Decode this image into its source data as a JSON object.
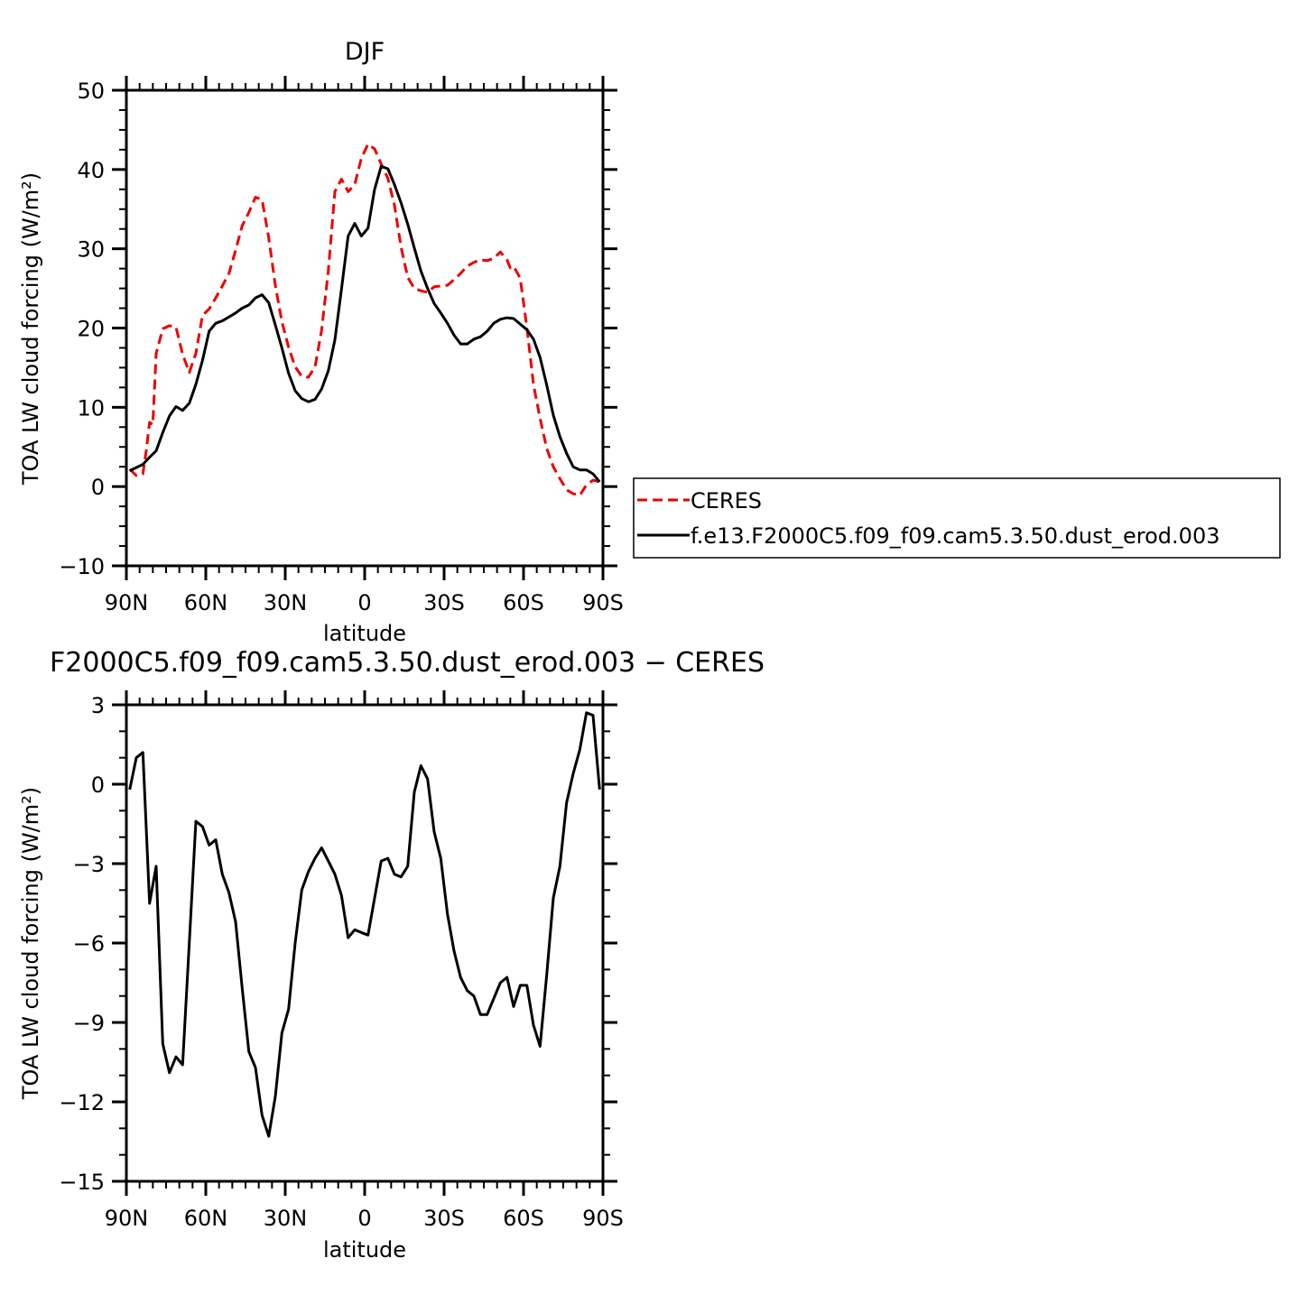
{
  "chart_data": [
    {
      "type": "line",
      "title": "DJF",
      "xlabel": "latitude",
      "ylabel": "TOA LW cloud forcing (W/m²)",
      "ylim": [
        -10,
        50
      ],
      "xlim": [
        90,
        -90
      ],
      "yticks": [
        "50",
        "40",
        "30",
        "20",
        "10",
        "0",
        "−10"
      ],
      "ytick_values": [
        50,
        40,
        30,
        20,
        10,
        0,
        -10
      ],
      "xticks": [
        "90N",
        "60N",
        "30N",
        "0",
        "30S",
        "60S",
        "90S"
      ],
      "xtick_values": [
        90,
        60,
        30,
        0,
        -30,
        -60,
        -90
      ],
      "legend_position": "right",
      "series": [
        {
          "name": "CERES",
          "color": "#ee0000",
          "dash": "dashed",
          "x": [
            88.75,
            86.25,
            83.75,
            82.5,
            81.25,
            80,
            78.75,
            76.25,
            73.75,
            71.25,
            68.75,
            66.25,
            63.75,
            61.25,
            58.75,
            56.25,
            53.75,
            51.25,
            48.75,
            46.25,
            43.75,
            41.25,
            38.75,
            36.25,
            33.75,
            31.25,
            28.75,
            26.25,
            23.75,
            21.25,
            18.75,
            16.25,
            13.75,
            11.25,
            8.75,
            6.25,
            3.75,
            1.25,
            -1.25,
            -3.75,
            -6.25,
            -8.75,
            -11.25,
            -13.75,
            -16.25,
            -18.75,
            -21.25,
            -23.75,
            -26.25,
            -28.75,
            -31.25,
            -33.75,
            -36.25,
            -38.75,
            -41.25,
            -43.75,
            -46.25,
            -48.75,
            -51.25,
            -53.75,
            -55,
            -56.25,
            -58.75,
            -61.25,
            -63.75,
            -66.25,
            -68.75,
            -71.25,
            -73.75,
            -76.25,
            -78.75,
            -81.25,
            -83.75,
            -86.25,
            -88.75
          ],
          "y": [
            2.2,
            1.4,
            1.6,
            4.5,
            8.1,
            7.8,
            16.8,
            19.9,
            20.3,
            20.1,
            16.7,
            14.4,
            16.8,
            21.6,
            22.4,
            23.8,
            25.3,
            26.9,
            29.8,
            32.9,
            34.6,
            36.5,
            36.2,
            31.4,
            25.4,
            20.8,
            17.6,
            15.1,
            13.9,
            13.8,
            15.1,
            19.7,
            27.2,
            37.2,
            38.8,
            37.2,
            38.1,
            41.4,
            43.2,
            42.6,
            40.7,
            38.9,
            35.5,
            30.2,
            26.4,
            25.0,
            24.7,
            24.5,
            25.2,
            25.3,
            25.4,
            26.1,
            26.9,
            27.8,
            28.3,
            28.6,
            28.5,
            28.8,
            29.6,
            28.6,
            27.6,
            27.8,
            26.3,
            20.1,
            12.9,
            8.6,
            4.8,
            2.5,
            1.0,
            -0.4,
            -0.9,
            -1.1,
            0.2,
            0.8,
            0.6
          ]
        },
        {
          "name": "f.e13.F2000C5.f09_f09.cam5.3.50.dust_erod.003",
          "color": "#000000",
          "dash": "solid",
          "x": [
            88.75,
            86.25,
            83.75,
            81.25,
            78.75,
            76.25,
            73.75,
            71.25,
            68.75,
            66.25,
            63.75,
            61.25,
            58.75,
            56.25,
            53.75,
            51.25,
            48.75,
            46.25,
            43.75,
            41.25,
            38.75,
            36.25,
            33.75,
            31.25,
            28.75,
            26.25,
            23.75,
            21.25,
            18.75,
            16.25,
            13.75,
            11.25,
            8.75,
            6.25,
            3.75,
            1.25,
            -1.25,
            -3.75,
            -6.25,
            -8.75,
            -11.25,
            -13.75,
            -16.25,
            -18.75,
            -21.25,
            -23.75,
            -26.25,
            -28.75,
            -31.25,
            -33.75,
            -36.25,
            -38.75,
            -41.25,
            -43.75,
            -46.25,
            -48.75,
            -51.25,
            -53.75,
            -56.25,
            -58.75,
            -61.25,
            -63.75,
            -66.25,
            -68.75,
            -71.25,
            -73.75,
            -76.25,
            -78.75,
            -81.25,
            -83.75,
            -86.25,
            -88.75
          ],
          "y": [
            2.0,
            2.4,
            2.8,
            3.7,
            4.5,
            6.8,
            8.9,
            10.1,
            9.6,
            10.5,
            12.9,
            15.9,
            19.6,
            20.6,
            20.9,
            21.4,
            21.9,
            22.5,
            22.9,
            23.8,
            24.2,
            23.2,
            20.4,
            17.5,
            14.3,
            12.1,
            11.1,
            10.7,
            11.0,
            12.3,
            14.6,
            18.5,
            24.9,
            31.6,
            33.2,
            31.6,
            32.6,
            37.5,
            40.4,
            40.1,
            38.1,
            35.8,
            33.1,
            30.1,
            27.2,
            25.0,
            23.1,
            21.9,
            20.6,
            19.1,
            18.0,
            18.0,
            18.6,
            18.9,
            19.6,
            20.6,
            21.1,
            21.3,
            21.2,
            20.5,
            19.8,
            18.6,
            16.3,
            12.8,
            9.0,
            6.3,
            4.2,
            2.5,
            2.1,
            2.1,
            1.6,
            0.6
          ]
        }
      ]
    },
    {
      "type": "line",
      "title": "F2000C5.f09_f09.cam5.3.50.dust_erod.003 − CERES",
      "xlabel": "latitude",
      "ylabel": "TOA LW cloud forcing (W/m²)",
      "ylim": [
        -15,
        3
      ],
      "xlim": [
        90,
        -90
      ],
      "yticks": [
        "3",
        "0",
        "−3",
        "−6",
        "−9",
        "−12",
        "−15"
      ],
      "ytick_values": [
        3,
        0,
        -3,
        -6,
        -9,
        -12,
        -15
      ],
      "xticks": [
        "90N",
        "60N",
        "30N",
        "0",
        "30S",
        "60S",
        "90S"
      ],
      "xtick_values": [
        90,
        60,
        30,
        0,
        -30,
        -60,
        -90
      ],
      "series": [
        {
          "name": "",
          "color": "#000000",
          "dash": "solid",
          "x": [
            88.75,
            86.25,
            83.75,
            81.25,
            78.75,
            76.25,
            73.75,
            71.25,
            68.75,
            66.25,
            63.75,
            61.25,
            58.75,
            56.25,
            53.75,
            51.25,
            48.75,
            46.25,
            43.75,
            41.25,
            38.75,
            36.25,
            33.75,
            31.25,
            28.75,
            26.25,
            23.75,
            21.25,
            18.75,
            16.25,
            13.75,
            11.25,
            8.75,
            6.25,
            3.75,
            1.25,
            -1.25,
            -3.75,
            -6.25,
            -8.75,
            -11.25,
            -13.75,
            -16.25,
            -18.75,
            -21.25,
            -23.75,
            -26.25,
            -28.75,
            -31.25,
            -33.75,
            -36.25,
            -38.75,
            -41.25,
            -43.75,
            -46.25,
            -48.75,
            -51.25,
            -53.75,
            -56.25,
            -58.75,
            -61.25,
            -63.75,
            -66.25,
            -68.75,
            -71.25,
            -73.75,
            -76.25,
            -78.75,
            -81.25,
            -83.75,
            -86.25,
            -88.75
          ],
          "y": [
            -0.2,
            1.0,
            1.2,
            -4.5,
            -3.1,
            -9.8,
            -10.9,
            -10.3,
            -10.6,
            -6.0,
            -1.4,
            -1.6,
            -2.3,
            -2.1,
            -3.4,
            -4.1,
            -5.2,
            -7.7,
            -10.1,
            -10.7,
            -12.5,
            -13.3,
            -11.8,
            -9.4,
            -8.5,
            -6.0,
            -4.0,
            -3.3,
            -2.8,
            -2.4,
            -2.9,
            -3.4,
            -4.2,
            -5.8,
            -5.5,
            -5.6,
            -5.7,
            -4.3,
            -2.9,
            -2.8,
            -3.4,
            -3.5,
            -3.1,
            -0.3,
            0.7,
            0.2,
            -1.8,
            -2.8,
            -4.9,
            -6.3,
            -7.3,
            -7.8,
            -8.0,
            -8.7,
            -8.7,
            -8.1,
            -7.5,
            -7.3,
            -8.4,
            -7.6,
            -7.6,
            -9.1,
            -9.9,
            -7.2,
            -4.3,
            -3.1,
            -0.7,
            0.4,
            1.3,
            2.7,
            2.6,
            -0.2
          ]
        }
      ]
    }
  ]
}
